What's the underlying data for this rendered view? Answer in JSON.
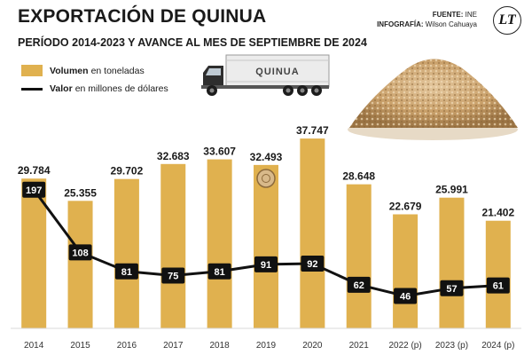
{
  "header": {
    "title": "EXPORTACIÓN DE QUINUA",
    "subtitle": "PERÍODO 2014-2023 Y AVANCE AL MES DE SEPTIEMBRE DE 2024",
    "source_label": "FUENTE:",
    "source_value": "INE",
    "infographic_label": "INFOGRAFÍA:",
    "infographic_value": "Wilson Cahuaya",
    "logo_text": "LT"
  },
  "legend": {
    "volume_bold": "Volumen",
    "volume_rest": "en toneladas",
    "value_bold": "Valor",
    "value_rest": "en millones de dólares"
  },
  "truck": {
    "label": "QUINUA"
  },
  "colors": {
    "bar": "#e0b14f",
    "line": "#111111",
    "value_box": "#111111",
    "value_text": "#ffffff",
    "grain": "#c9a06a"
  },
  "icons": [
    "truck-icon",
    "quinoa-pile-image"
  ],
  "chart_data": {
    "type": "bar",
    "categories": [
      "2014",
      "2015",
      "2016",
      "2017",
      "2018",
      "2019",
      "2020",
      "2021",
      "2022 (p)",
      "2023 (p)",
      "2024 (p)"
    ],
    "series": [
      {
        "name": "Volumen en toneladas",
        "type": "bar",
        "values": [
          29784,
          25355,
          29702,
          32683,
          33607,
          32493,
          37747,
          28648,
          22679,
          25991,
          21402
        ],
        "labels": [
          "29.784",
          "25.355",
          "29.702",
          "32.683",
          "33.607",
          "32.493",
          "37.747",
          "28.648",
          "22.679",
          "25.991",
          "21.402"
        ]
      },
      {
        "name": "Valor en millones de dólares",
        "type": "line",
        "values": [
          197,
          108,
          81,
          75,
          81,
          91,
          92,
          62,
          46,
          57,
          61
        ],
        "labels": [
          "197",
          "108",
          "81",
          "75",
          "81",
          "91",
          "92",
          "62",
          "46",
          "57",
          "61"
        ]
      }
    ],
    "ylim": [
      0,
      42000
    ],
    "y2lim": [
      0,
      280
    ],
    "grid": false
  }
}
